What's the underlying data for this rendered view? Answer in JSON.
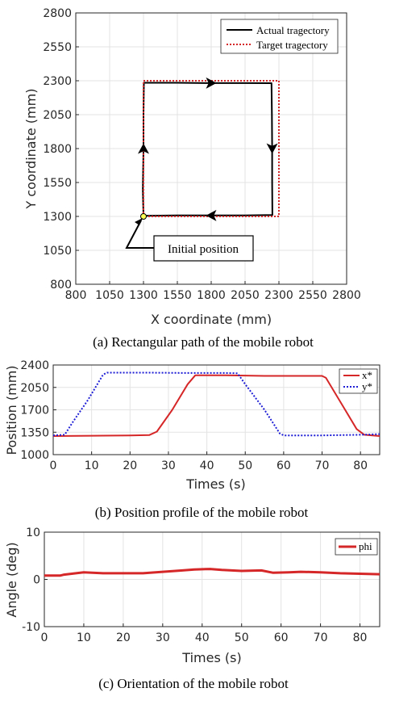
{
  "chart_data": [
    {
      "type": "line",
      "title": "",
      "xlabel": "X coordinate (mm)",
      "ylabel": "Y coordinate (mm)",
      "xlim": [
        800,
        2800
      ],
      "ylim": [
        800,
        2800
      ],
      "xticks": [
        "800",
        "1050",
        "1300",
        "1550",
        "1800",
        "2050",
        "2300",
        "2550",
        "2800"
      ],
      "yticks": [
        "800",
        "1050",
        "1300",
        "1550",
        "1800",
        "2050",
        "2300",
        "2550",
        "2800"
      ],
      "grid": true,
      "legend_position": "top-right",
      "series": [
        {
          "name": "Actual tragectory",
          "color": "#000000",
          "style": "solid",
          "points": [
            [
              1300,
              1300
            ],
            [
              1295,
              1500
            ],
            [
              1300,
              1800
            ],
            [
              1300,
              2050
            ],
            [
              1303,
              2285
            ],
            [
              1550,
              2285
            ],
            [
              1800,
              2283
            ],
            [
              2050,
              2283
            ],
            [
              2245,
              2282
            ],
            [
              2248,
              2050
            ],
            [
              2250,
              1800
            ],
            [
              2250,
              1550
            ],
            [
              2252,
              1310
            ],
            [
              2050,
              1308
            ],
            [
              1800,
              1307
            ],
            [
              1550,
              1308
            ],
            [
              1300,
              1305
            ]
          ]
        },
        {
          "name": "Target tragectory",
          "color": "#d62728",
          "style": "dotted",
          "points": [
            [
              1300,
              1300
            ],
            [
              1300,
              2300
            ],
            [
              2300,
              2300
            ],
            [
              2300,
              1300
            ],
            [
              1300,
              1300
            ]
          ]
        }
      ],
      "annotations": [
        {
          "text": "Initial position",
          "x": 1300,
          "y": 1300
        }
      ],
      "caption": "(a) Rectangular path of the mobile robot"
    },
    {
      "type": "line",
      "title": "",
      "xlabel": "Times (s)",
      "ylabel": "Position (mm)",
      "xlim": [
        0,
        85
      ],
      "ylim": [
        1000,
        2400
      ],
      "xticks": [
        "0",
        "10",
        "20",
        "30",
        "40",
        "50",
        "60",
        "70",
        "80"
      ],
      "yticks": [
        "1000",
        "1350",
        "1700",
        "2050",
        "2400"
      ],
      "grid": true,
      "legend_position": "top-right",
      "series": [
        {
          "name": "x*",
          "color": "#d62728",
          "style": "solid",
          "points": [
            [
              0,
              1290
            ],
            [
              10,
              1295
            ],
            [
              20,
              1300
            ],
            [
              25,
              1305
            ],
            [
              27,
              1360
            ],
            [
              31,
              1700
            ],
            [
              35,
              2100
            ],
            [
              37,
              2240
            ],
            [
              45,
              2240
            ],
            [
              55,
              2230
            ],
            [
              65,
              2230
            ],
            [
              70,
              2230
            ],
            [
              71,
              2200
            ],
            [
              75,
              1800
            ],
            [
              79,
              1400
            ],
            [
              81,
              1310
            ],
            [
              85,
              1290
            ]
          ]
        },
        {
          "name": "y*",
          "color": "#1f1fd6",
          "style": "dotted",
          "points": [
            [
              0,
              1300
            ],
            [
              3,
              1310
            ],
            [
              5,
              1500
            ],
            [
              9,
              1850
            ],
            [
              13,
              2250
            ],
            [
              14,
              2280
            ],
            [
              25,
              2280
            ],
            [
              35,
              2275
            ],
            [
              45,
              2275
            ],
            [
              48,
              2270
            ],
            [
              50,
              2100
            ],
            [
              55,
              1700
            ],
            [
              59,
              1330
            ],
            [
              60,
              1300
            ],
            [
              70,
              1300
            ],
            [
              80,
              1310
            ],
            [
              85,
              1320
            ]
          ]
        }
      ],
      "caption": "(b) Position profile of the mobile robot"
    },
    {
      "type": "line",
      "title": "",
      "xlabel": "Times (s)",
      "ylabel": "Angle (deg)",
      "xlim": [
        0,
        85
      ],
      "ylim": [
        -10,
        10
      ],
      "xticks": [
        "0",
        "10",
        "20",
        "30",
        "40",
        "50",
        "60",
        "70",
        "80"
      ],
      "yticks": [
        "-10",
        "0",
        "10"
      ],
      "grid": true,
      "legend_position": "top-right",
      "series": [
        {
          "name": "phi",
          "color": "#d62728",
          "style": "solid",
          "points": [
            [
              0,
              0.8
            ],
            [
              4,
              0.8
            ],
            [
              5,
              1.0
            ],
            [
              8,
              1.3
            ],
            [
              10,
              1.5
            ],
            [
              15,
              1.3
            ],
            [
              20,
              1.3
            ],
            [
              25,
              1.3
            ],
            [
              30,
              1.6
            ],
            [
              35,
              1.9
            ],
            [
              38,
              2.1
            ],
            [
              42,
              2.2
            ],
            [
              45,
              2.0
            ],
            [
              50,
              1.8
            ],
            [
              55,
              1.9
            ],
            [
              58,
              1.4
            ],
            [
              62,
              1.5
            ],
            [
              65,
              1.6
            ],
            [
              70,
              1.5
            ],
            [
              75,
              1.3
            ],
            [
              80,
              1.2
            ],
            [
              85,
              1.1
            ]
          ]
        }
      ],
      "caption": "(c) Orientation of the mobile robot"
    }
  ]
}
